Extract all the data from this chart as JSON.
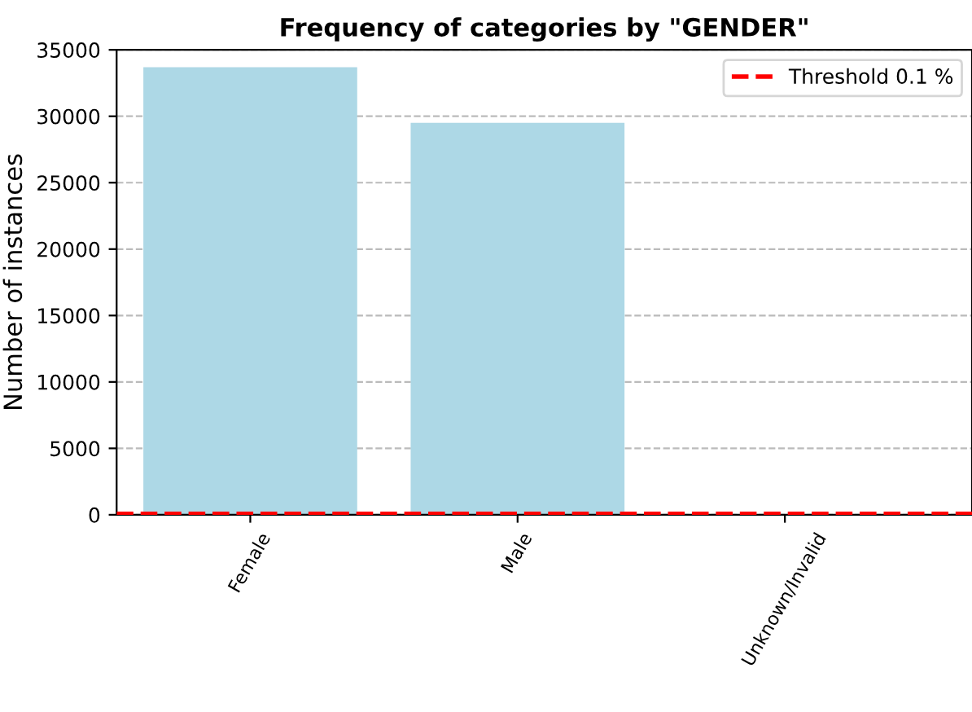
{
  "chart_data": {
    "type": "bar",
    "title": "Frequency of categories by \"GENDER\"",
    "ylabel": "Number of instances",
    "categories": [
      "Female",
      "Male",
      "Unknown/Invalid"
    ],
    "values": [
      33700,
      29500,
      0
    ],
    "color": "#add8e6",
    "ylim": [
      0,
      35000
    ],
    "yticks": [
      0,
      5000,
      10000,
      15000,
      20000,
      25000,
      30000,
      35000
    ],
    "ref_lines": [
      {
        "axis": "y",
        "value": 63,
        "label": "Threshold 0.1 %",
        "color": "#ff0000",
        "line_style": "dashed"
      }
    ],
    "grid": "y",
    "legend": "top right"
  }
}
